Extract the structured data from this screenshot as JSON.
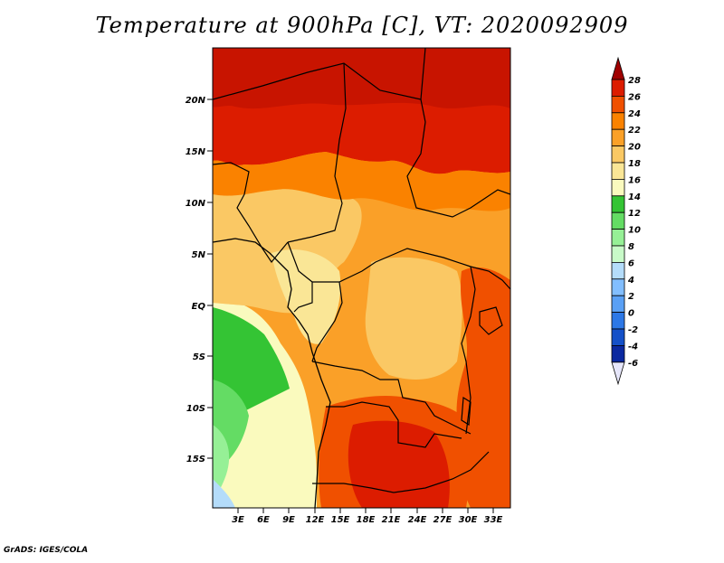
{
  "title": "Temperature at 900hPa [C], VT: 2020092909",
  "footer": "GrADS: IGES/COLA",
  "map": {
    "lat_labels": [
      "20N",
      "15N",
      "10N",
      "5N",
      "EQ",
      "5S",
      "10S",
      "15S"
    ],
    "lon_labels": [
      "3E",
      "6E",
      "9E",
      "12E",
      "15E",
      "18E",
      "21E",
      "24E",
      "27E",
      "30E",
      "33E"
    ]
  },
  "colorbar": {
    "labels": [
      "28",
      "26",
      "24",
      "22",
      "20",
      "18",
      "16",
      "14",
      "12",
      "10",
      "8",
      "6",
      "4",
      "2",
      "0",
      "-2",
      "-4",
      "-6"
    ],
    "colors": [
      "#a00000",
      "#dc1c00",
      "#f05000",
      "#fa8200",
      "#faa028",
      "#fac864",
      "#fae696",
      "#fafabe",
      "#34c434",
      "#64dc64",
      "#96f096",
      "#c8fac8",
      "#b4dcfa",
      "#82beff",
      "#5aa0f5",
      "#2d78e6",
      "#1450c8",
      "#0a28a0",
      "#000064"
    ]
  }
}
